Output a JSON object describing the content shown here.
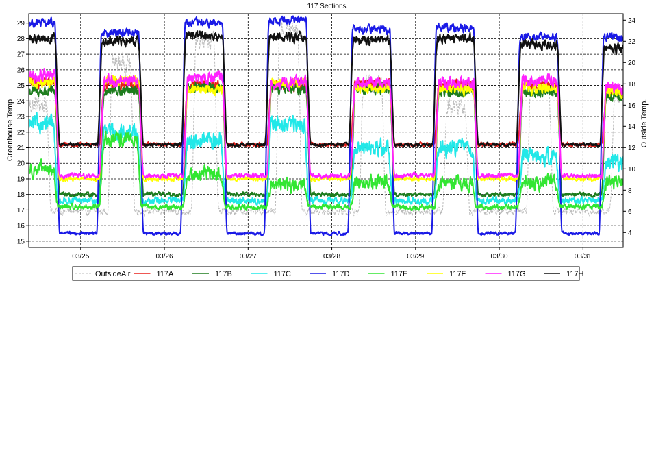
{
  "chart_data": {
    "type": "line",
    "title": "117 Sections",
    "ylabel": "Greenhouse Temp",
    "y2label": "Outside Temp.",
    "ylim": [
      14.6,
      29.6
    ],
    "y2lim": [
      2.6,
      24.6
    ],
    "yticks": [
      15,
      16,
      17,
      18,
      19,
      20,
      21,
      22,
      23,
      24,
      25,
      26,
      27,
      28,
      29
    ],
    "y2ticks": [
      4,
      6,
      8,
      10,
      12,
      14,
      16,
      18,
      20,
      22,
      24
    ],
    "xlim": [
      -0.62,
      6.48
    ],
    "xtick_positions": [
      0,
      1,
      2,
      3,
      4,
      5,
      6
    ],
    "xtick_labels": [
      "03/25",
      "03/26",
      "03/27",
      "03/28",
      "03/29",
      "03/30",
      "03/31"
    ],
    "grid": true,
    "legend_position": "bottom",
    "x_unit_note": "",
    "series": [
      {
        "name": "OutsideAir",
        "axis": "right",
        "color": "#bbbbbb",
        "dashed": true,
        "profile": {
          "night": 6,
          "day": 20,
          "rise": 0.35,
          "fall": 0.62,
          "noise": 1.2
        },
        "day_offsets": [
          -4,
          0,
          2,
          3,
          -2,
          -4,
          -2,
          -3
        ]
      },
      {
        "name": "117A",
        "axis": "left",
        "color": "#e8201a",
        "profile": {
          "night": 21.2,
          "day": 25.0,
          "rise": 0.25,
          "fall": 0.72,
          "noise": 0.45
        },
        "day_offsets": [
          0.2,
          0,
          0,
          0,
          0.1,
          0,
          0,
          -0.4
        ]
      },
      {
        "name": "117B",
        "axis": "left",
        "color": "#1e7d1e",
        "profile": {
          "night": 18.0,
          "day": 24.6,
          "rise": 0.25,
          "fall": 0.72,
          "noise": 0.45
        },
        "day_offsets": [
          0,
          0,
          0.3,
          0.2,
          0.2,
          0,
          0,
          -0.3
        ]
      },
      {
        "name": "117C",
        "axis": "left",
        "color": "#22e8e8",
        "profile": {
          "night": 17.6,
          "day": 21.0,
          "rise": 0.25,
          "fall": 0.7,
          "noise": 0.7
        },
        "day_offsets": [
          1.5,
          1,
          0.5,
          1.5,
          0,
          0,
          -0.5,
          -1
        ]
      },
      {
        "name": "117D",
        "axis": "left",
        "color": "#1a1ae6",
        "profile": {
          "night": 15.5,
          "day": 28.4,
          "rise": 0.22,
          "fall": 0.72,
          "noise": 0.35
        },
        "day_offsets": [
          0.6,
          0,
          0.6,
          0.8,
          0.2,
          0.3,
          -0.3,
          -0.3
        ]
      },
      {
        "name": "117E",
        "axis": "left",
        "color": "#32e632",
        "profile": {
          "night": 17.2,
          "day": 19.0,
          "rise": 0.25,
          "fall": 0.7,
          "noise": 0.6
        },
        "day_offsets": [
          0.6,
          2.5,
          0.3,
          -0.4,
          -0.2,
          -0.3,
          -0.2,
          -0.2
        ]
      },
      {
        "name": "117F",
        "axis": "left",
        "color": "#ffff00",
        "profile": {
          "night": 19.0,
          "day": 24.8,
          "rise": 0.25,
          "fall": 0.72,
          "noise": 0.45
        },
        "day_offsets": [
          0.4,
          0.5,
          0,
          0.3,
          0,
          0,
          0,
          -0.2
        ]
      },
      {
        "name": "117G",
        "axis": "left",
        "color": "#ff22ff",
        "profile": {
          "night": 19.2,
          "day": 25.0,
          "rise": 0.25,
          "fall": 0.72,
          "noise": 0.5
        },
        "day_offsets": [
          0.6,
          0.3,
          0.5,
          0.2,
          0.2,
          0.2,
          0.3,
          -0.2
        ]
      },
      {
        "name": "117H",
        "axis": "left",
        "color": "#111111",
        "profile": {
          "night": 21.2,
          "day": 27.8,
          "rise": 0.23,
          "fall": 0.72,
          "noise": 0.4
        },
        "day_offsets": [
          0.2,
          0,
          0.4,
          0.3,
          0.1,
          0.2,
          -0.2,
          -0.4
        ]
      }
    ]
  }
}
